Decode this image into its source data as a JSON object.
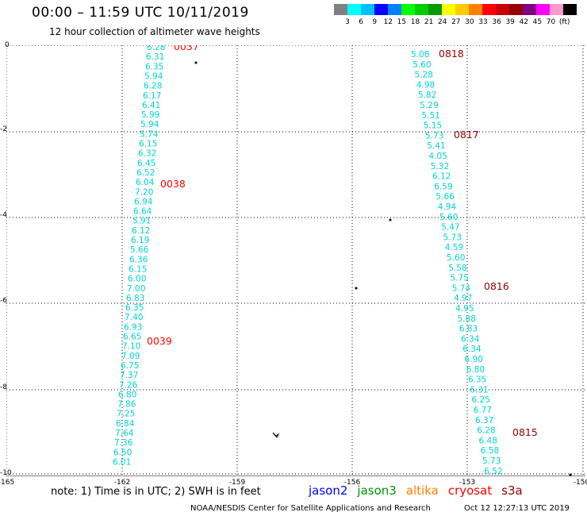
{
  "header": {
    "title": "00:00 – 11:59 UTC 10/11/2019",
    "subtitle": "12 hour collection of altimeter wave heights"
  },
  "colorbar": {
    "colors": [
      "#808080",
      "#00ffff",
      "#00bfff",
      "#0000ff",
      "#0080ff",
      "#00ff00",
      "#00cc00",
      "#009900",
      "#ffff00",
      "#ffcc00",
      "#ff8000",
      "#ff0000",
      "#cc0000",
      "#990000",
      "#800080",
      "#ff00ff",
      "#ff99cc",
      "#000000"
    ],
    "labels": [
      "3",
      "6",
      "9",
      "12",
      "15",
      "18",
      "21",
      "24",
      "27",
      "30",
      "33",
      "36",
      "39",
      "42",
      "45",
      "70",
      "(ft)"
    ]
  },
  "axes": {
    "x_ticks": [
      "-165",
      "-162",
      "-159",
      "-156",
      "-153",
      "-150"
    ],
    "y_ticks": [
      "0",
      "-2",
      "-4",
      "-6",
      "-8",
      "-10"
    ]
  },
  "tracks": {
    "left_values": [
      "6.28",
      "6.31",
      "6.35",
      "5.94",
      "6.28",
      "6.17",
      "6.41",
      "5.99",
      "5.94",
      "5.74",
      "6.15",
      "6.32",
      "6.45",
      "6.52",
      "6.04",
      "7.20",
      "6.94",
      "6.64",
      "5.91",
      "6.12",
      "6.19",
      "5.66",
      "6.36",
      "6.15",
      "6.00",
      "7.00",
      "6.83",
      "6.35",
      "7.40",
      "6.93",
      "6.65",
      "7.10",
      "7.09",
      "6.75",
      "7.37",
      "7.26",
      "6.80",
      "7.86",
      "7.25",
      "6.84",
      "7.64",
      "7.36",
      "6.50",
      "6.01"
    ],
    "right_values": [
      "5.08",
      "5.60",
      "5.28",
      "4.98",
      "5.82",
      "5.29",
      "5.51",
      "5.15",
      "5.73",
      "5.41",
      "4.05",
      "5.32",
      "6.12",
      "6.59",
      "5.66",
      "4.94",
      "5.60",
      "5.47",
      "5.73",
      "4.59",
      "5.60",
      "5.58",
      "5.75",
      "5.74",
      "4.97",
      "4.95",
      "5.88",
      "6.83",
      "6.34",
      "6.34",
      "6.90",
      "6.80",
      "6.35",
      "6.31",
      "6.25",
      "6.77",
      "6.37",
      "6.28",
      "6.48",
      "6.58",
      "5.73",
      "6.52",
      "6.86"
    ],
    "time_labels": [
      {
        "text": "0037",
        "color": "#ff0000"
      },
      {
        "text": "0038",
        "color": "#ff0000"
      },
      {
        "text": "0039",
        "color": "#ff0000"
      },
      {
        "text": "0818",
        "color": "#990000"
      },
      {
        "text": "0817",
        "color": "#990000"
      },
      {
        "text": "0816",
        "color": "#990000"
      },
      {
        "text": "0815",
        "color": "#990000"
      }
    ]
  },
  "footer": {
    "note": "note:  1) Time is in UTC;  2) SWH is in feet",
    "satellites": [
      {
        "name": "jason2",
        "color": "#0000ff"
      },
      {
        "name": "jason3",
        "color": "#009900"
      },
      {
        "name": "altika",
        "color": "#ff8000"
      },
      {
        "name": "cryosat",
        "color": "#ff0000"
      },
      {
        "name": "s3a",
        "color": "#990000"
      }
    ],
    "credit": "NOAA/NESDIS Center for Satellite Applications and Research",
    "timestamp": "Oct 12 12:27:13 UTC 2019"
  }
}
